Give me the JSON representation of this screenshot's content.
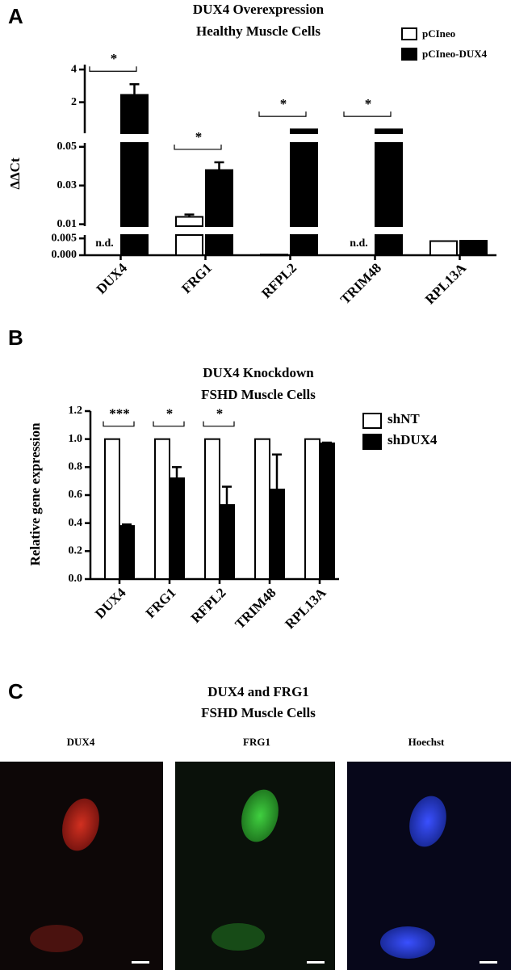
{
  "chart_data": [
    {
      "panel": "A",
      "type": "bar",
      "title": [
        "DUX4 Overexpression",
        "Healthy Muscle Cells"
      ],
      "y_label": "ΔΔCt",
      "categories": [
        "DUX4",
        "FRG1",
        "RFPL2",
        "TRIM48",
        "RPL13A"
      ],
      "axis_segments": [
        {
          "ylim": [
            0,
            0.006
          ],
          "yticks": [
            {
              "value": 0,
              "label": "0.000"
            },
            0.005
          ]
        },
        {
          "ylim": [
            0.009,
            0.052
          ],
          "yticks": [
            0.01,
            0.03,
            0.05
          ]
        },
        {
          "ylim": [
            0.1,
            4.3
          ],
          "yticks": [
            2,
            4
          ]
        }
      ],
      "series": [
        {
          "name": "pCIneo",
          "color": "#ffffff",
          "values": [
            null,
            0.0138,
            0.0002,
            null,
            0.0042
          ],
          "errors": [
            null,
            0.0012,
            null,
            null,
            null
          ],
          "value_labels": [
            "n.d.",
            null,
            null,
            "n.d.",
            null
          ]
        },
        {
          "name": "pCIneo-DUX4",
          "color": "#000000",
          "values": [
            2.45,
            0.038,
            0.34,
            0.34,
            0.0043
          ],
          "errors": [
            0.65,
            0.004,
            null,
            null,
            null
          ]
        }
      ],
      "significance": [
        {
          "category": "DUX4",
          "label": "*"
        },
        {
          "category": "FRG1",
          "label": "*"
        },
        {
          "category": "RFPL2",
          "label": "*"
        },
        {
          "category": "TRIM48",
          "label": "*"
        }
      ],
      "legend": "top-right"
    },
    {
      "panel": "B",
      "type": "bar",
      "title": [
        "DUX4 Knockdown",
        "FSHD Muscle Cells"
      ],
      "y_label": "Relative gene expression",
      "categories": [
        "DUX4",
        "FRG1",
        "RFPL2",
        "TRIM48",
        "RPL13A"
      ],
      "ylim": [
        0,
        1.2
      ],
      "yticks": [
        {
          "value": 0,
          "label": "0.0"
        },
        0.2,
        0.4,
        0.6,
        0.8,
        {
          "value": 1,
          "label": "1.0"
        },
        1.2
      ],
      "series": [
        {
          "name": "shNT",
          "color": "#ffffff",
          "values": [
            1,
            1,
            1,
            1,
            1
          ],
          "errors": [
            null,
            null,
            null,
            null,
            null
          ]
        },
        {
          "name": "shDUX4",
          "color": "#000000",
          "values": [
            0.38,
            0.72,
            0.53,
            0.64,
            0.97
          ],
          "errors": [
            0.01,
            0.08,
            0.13,
            0.25,
            0.005
          ]
        }
      ],
      "significance": [
        {
          "category": "DUX4",
          "label": "***"
        },
        {
          "category": "FRG1",
          "label": "*"
        },
        {
          "category": "RFPL2",
          "label": "*"
        }
      ],
      "legend": "right"
    }
  ],
  "panel_c": {
    "panel": "C",
    "title": [
      "DUX4 and FRG1",
      "FSHD Muscle Cells"
    ],
    "images": [
      "DUX4",
      "FRG1",
      "Hoechst"
    ]
  }
}
